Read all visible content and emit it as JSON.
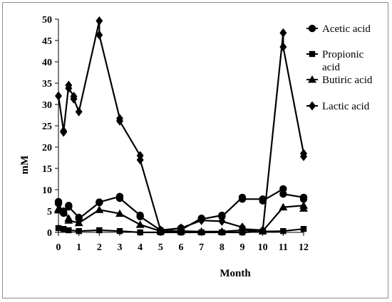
{
  "chart_data": {
    "type": "line",
    "title": "",
    "xlabel": "Month",
    "ylabel": "mM",
    "xlim": [
      0,
      12
    ],
    "ylim": [
      0,
      50
    ],
    "xticks": [
      "0",
      "1",
      "2",
      "3",
      "4",
      "5",
      "6",
      "7",
      "8",
      "9",
      "10",
      "11",
      "12"
    ],
    "yticks": [
      "0",
      "5",
      "10",
      "15",
      "20",
      "25",
      "30",
      "35",
      "40",
      "45",
      "50"
    ],
    "grid": false,
    "legend_position": "top-right",
    "colors": {
      "series": "#000000",
      "axis": "#000000",
      "frame": "#8c8c8c"
    },
    "series": [
      {
        "name": "Acetic acid",
        "legend_lines": [
          "Acetic acid"
        ],
        "marker": "circle",
        "points": [
          [
            0,
            7.2
          ],
          [
            0,
            6.8
          ],
          [
            0.25,
            4.5
          ],
          [
            0.25,
            4.9
          ],
          [
            0.5,
            6.3
          ],
          [
            0.5,
            6.0
          ],
          [
            1,
            3.5
          ],
          [
            1,
            3.2
          ],
          [
            2,
            7.0
          ],
          [
            2,
            7.1
          ],
          [
            3,
            8.4
          ],
          [
            3,
            8.0
          ],
          [
            4,
            4.0
          ],
          [
            4,
            3.7
          ],
          [
            5,
            0.5
          ],
          [
            5,
            0.3
          ],
          [
            6,
            1.0
          ],
          [
            6,
            0.6
          ],
          [
            7,
            3.3
          ],
          [
            7,
            3.1
          ],
          [
            8,
            4.0
          ],
          [
            8,
            3.7
          ],
          [
            9,
            8.2
          ],
          [
            9,
            7.8
          ],
          [
            10,
            7.8
          ],
          [
            10,
            7.4
          ],
          [
            11,
            10.2
          ],
          [
            11,
            9.0
          ],
          [
            12,
            8.2
          ],
          [
            12,
            7.8
          ]
        ]
      },
      {
        "name": "Propionic acid",
        "legend_lines": [
          "Propionic",
          "acid"
        ],
        "marker": "square",
        "points": [
          [
            0,
            1.0
          ],
          [
            0.25,
            0.8
          ],
          [
            0.5,
            0.5
          ],
          [
            1,
            0.3
          ],
          [
            2,
            0.5
          ],
          [
            3,
            0.3
          ],
          [
            4,
            0.0
          ],
          [
            5,
            0.0
          ],
          [
            6,
            0.0
          ],
          [
            7,
            0.0
          ],
          [
            8,
            0.0
          ],
          [
            9,
            0.0
          ],
          [
            10,
            0.2
          ],
          [
            11,
            0.3
          ],
          [
            12,
            0.8
          ]
        ]
      },
      {
        "name": "Butiric acid",
        "legend_lines": [
          "Butiric acid"
        ],
        "marker": "triangle",
        "points": [
          [
            0,
            5.5
          ],
          [
            0,
            5.2
          ],
          [
            0.25,
            5.0
          ],
          [
            0.5,
            3.3
          ],
          [
            0.5,
            2.8
          ],
          [
            1,
            2.2
          ],
          [
            2,
            5.3
          ],
          [
            3,
            4.4
          ],
          [
            4,
            1.8
          ],
          [
            5,
            0.3
          ],
          [
            6,
            0.3
          ],
          [
            7,
            0.2
          ],
          [
            8,
            0.2
          ],
          [
            9,
            0.5
          ],
          [
            10,
            0.3
          ],
          [
            11,
            5.9
          ],
          [
            12,
            6.3
          ],
          [
            12,
            5.6
          ]
        ]
      },
      {
        "name": "Lactic acid",
        "legend_lines": [
          "Lactic acid"
        ],
        "marker": "diamond",
        "points": [
          [
            0,
            32.0
          ],
          [
            0.25,
            23.8
          ],
          [
            0.25,
            23.5
          ],
          [
            0.5,
            34.5
          ],
          [
            0.5,
            33.8
          ],
          [
            0.75,
            31.9
          ],
          [
            0.75,
            31.3
          ],
          [
            1,
            28.3
          ],
          [
            2,
            49.6
          ],
          [
            2,
            46.3
          ],
          [
            3,
            26.7
          ],
          [
            3,
            26.1
          ],
          [
            4,
            18.0
          ],
          [
            4,
            17.0
          ],
          [
            5,
            0.5
          ],
          [
            6,
            1.0
          ],
          [
            7,
            2.8
          ],
          [
            8,
            2.6
          ],
          [
            9,
            1.2
          ],
          [
            9,
            0.8
          ],
          [
            10,
            0.5
          ],
          [
            11,
            46.8
          ],
          [
            11,
            43.5
          ],
          [
            12,
            18.5
          ],
          [
            12,
            17.8
          ]
        ]
      }
    ]
  }
}
